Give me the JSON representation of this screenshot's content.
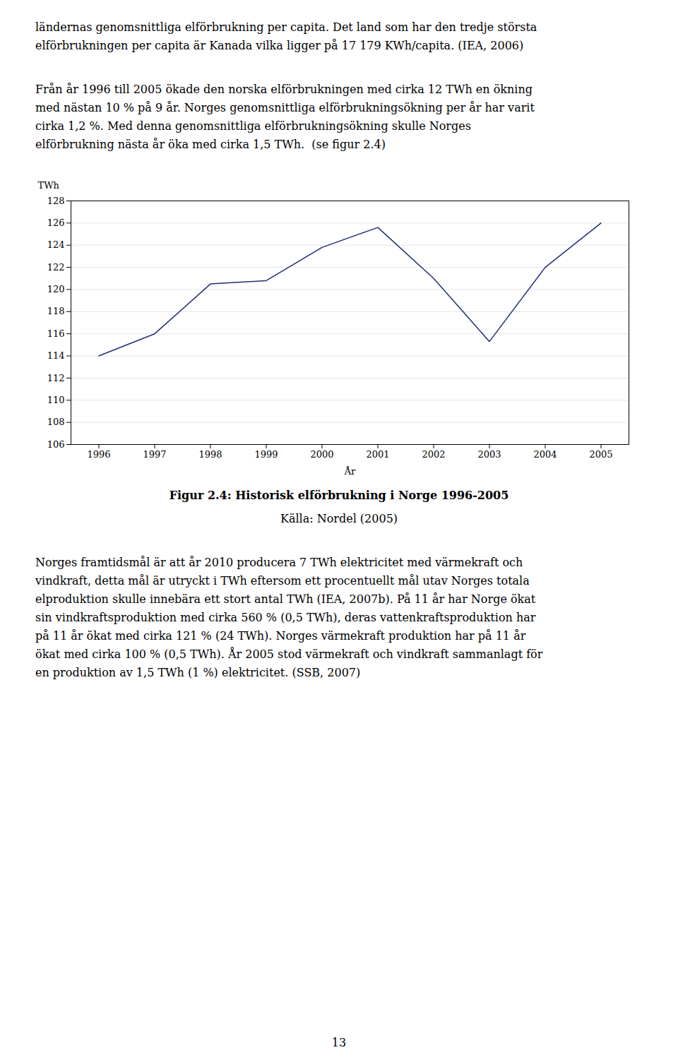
{
  "chart_data": {
    "type": "line",
    "title": "Figur 2.4: Historisk elförbrukning i Norge 1996-2005",
    "caption": "Källa: Nordel (2005)",
    "x_label": "År",
    "y_label": "TWh",
    "x": [
      1996,
      1997,
      1998,
      1999,
      2000,
      2001,
      2002,
      2003,
      2004,
      2005
    ],
    "values": [
      114.0,
      116.0,
      120.5,
      120.8,
      123.8,
      125.6,
      121.0,
      115.3,
      122.0,
      126.0
    ],
    "color": "#1F2D7B",
    "xlim": [
      1995.5,
      2005.5
    ],
    "xticks": [
      1996,
      1997,
      1998,
      1999,
      2000,
      2001,
      2002,
      2003,
      2004,
      2005
    ],
    "ylim": [
      106,
      128
    ],
    "yticks": [
      106,
      108,
      110,
      112,
      114,
      116,
      118,
      120,
      122,
      124,
      126,
      128
    ],
    "grid": true
  },
  "text_above": [
    [
      "ländernas genomsnittliga elförbrukning per capita. Det land som har den tredje största",
      "elförbrukningen per capita är Kanada vilka ligger på 17 179 KWh/capita. (IEA, 2006)"
    ],
    [
      "Från år 1996 till 2005 ökade den norska elförbrukningen med cirka 12 TWh en ökning",
      "med nästan 10 % på 9 år. Norges genomsnittliga elförbrukningsökning per år har varit",
      "cirka 1,2 %. Med denna genomsnittliga elförbrukningsökning skulle Norges",
      "elförbrukning nästa år öka med cirka 1,5 TWh.  (se figur 2.4)"
    ]
  ],
  "text_below": [
    [
      "Norges framtidsmål är att år 2010 producera 7 TWh elektricitet med värmekraft och",
      "vindkraft, detta mål är utryckt i TWh eftersom ett procentuellt mål utav Norges totala",
      "elproduktion skulle innebära ett stort antal TWh (IEA, 2007b). På 11 år har Norge ökat",
      "sin vindkraftsproduktion med cirka 560 % (0,5 TWh), deras vattenkraftsproduktion har",
      "på 11 år ökat med cirka 121 % (24 TWh). Norges värmekraft produktion har på 11 år",
      "ökat med cirka 100 % (0,5 TWh). År 2005 stod värmekraft och vindkraft sammanlagt för",
      "en produktion av 1,5 TWh (1 %) elektricitet. (SSB, 2007)"
    ]
  ],
  "page_number": "13"
}
